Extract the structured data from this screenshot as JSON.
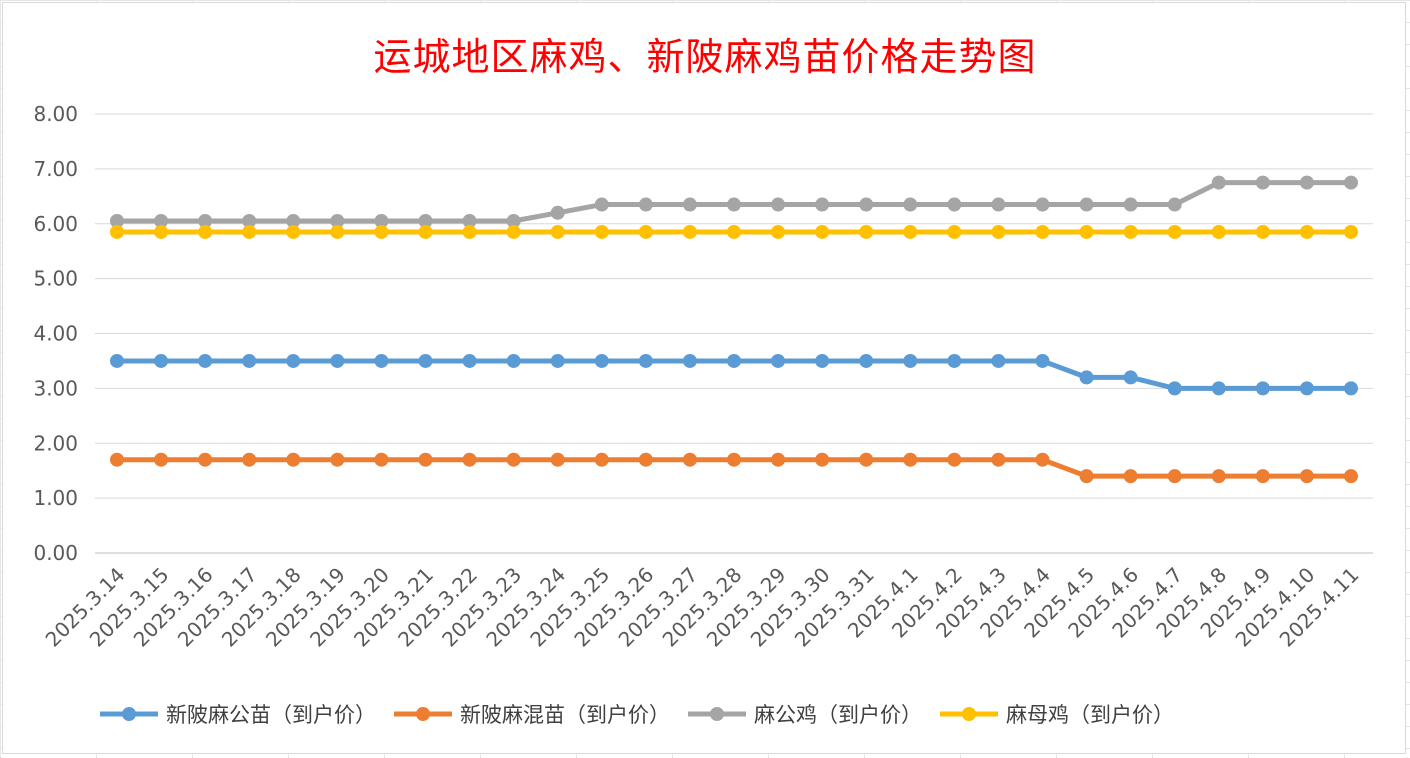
{
  "chart_data": {
    "type": "line",
    "title": "运城地区麻鸡、新陂麻鸡苗价格走势图",
    "categories": [
      "2025.3.14",
      "2025.3.15",
      "2025.3.16",
      "2025.3.17",
      "2025.3.18",
      "2025.3.19",
      "2025.3.20",
      "2025.3.21",
      "2025.3.22",
      "2025.3.23",
      "2025.3.24",
      "2025.3.25",
      "2025.3.26",
      "2025.3.27",
      "2025.3.28",
      "2025.3.29",
      "2025.3.30",
      "2025.3.31",
      "2025.4.1",
      "2025.4.2",
      "2025.4.3",
      "2025.4.4",
      "2025.4.5",
      "2025.4.6",
      "2025.4.7",
      "2025.4.8",
      "2025.4.9",
      "2025.4.10",
      "2025.4.11"
    ],
    "series": [
      {
        "name": "新陂麻公苗（到户价）",
        "color": "#5b9bd5",
        "values": [
          3.5,
          3.5,
          3.5,
          3.5,
          3.5,
          3.5,
          3.5,
          3.5,
          3.5,
          3.5,
          3.5,
          3.5,
          3.5,
          3.5,
          3.5,
          3.5,
          3.5,
          3.5,
          3.5,
          3.5,
          3.5,
          3.5,
          3.2,
          3.2,
          3.0,
          3.0,
          3.0,
          3.0,
          3.0
        ]
      },
      {
        "name": "新陂麻混苗（到户价）",
        "color": "#ed7d31",
        "values": [
          1.7,
          1.7,
          1.7,
          1.7,
          1.7,
          1.7,
          1.7,
          1.7,
          1.7,
          1.7,
          1.7,
          1.7,
          1.7,
          1.7,
          1.7,
          1.7,
          1.7,
          1.7,
          1.7,
          1.7,
          1.7,
          1.7,
          1.4,
          1.4,
          1.4,
          1.4,
          1.4,
          1.4,
          1.4
        ]
      },
      {
        "name": "麻公鸡（到户价）",
        "color": "#a5a5a5",
        "values": [
          6.05,
          6.05,
          6.05,
          6.05,
          6.05,
          6.05,
          6.05,
          6.05,
          6.05,
          6.05,
          6.2,
          6.35,
          6.35,
          6.35,
          6.35,
          6.35,
          6.35,
          6.35,
          6.35,
          6.35,
          6.35,
          6.35,
          6.35,
          6.35,
          6.35,
          6.75,
          6.75,
          6.75,
          6.75
        ]
      },
      {
        "name": "麻母鸡（到户价）",
        "color": "#ffc000",
        "values": [
          5.85,
          5.85,
          5.85,
          5.85,
          5.85,
          5.85,
          5.85,
          5.85,
          5.85,
          5.85,
          5.85,
          5.85,
          5.85,
          5.85,
          5.85,
          5.85,
          5.85,
          5.85,
          5.85,
          5.85,
          5.85,
          5.85,
          5.85,
          5.85,
          5.85,
          5.85,
          5.85,
          5.85,
          5.85
        ]
      }
    ],
    "yticks": [
      "0.00",
      "1.00",
      "2.00",
      "3.00",
      "4.00",
      "5.00",
      "6.00",
      "7.00",
      "8.00"
    ],
    "ylim": [
      0,
      8
    ],
    "xlabel": "",
    "ylabel": "",
    "grid": true,
    "legend": "bottom"
  }
}
